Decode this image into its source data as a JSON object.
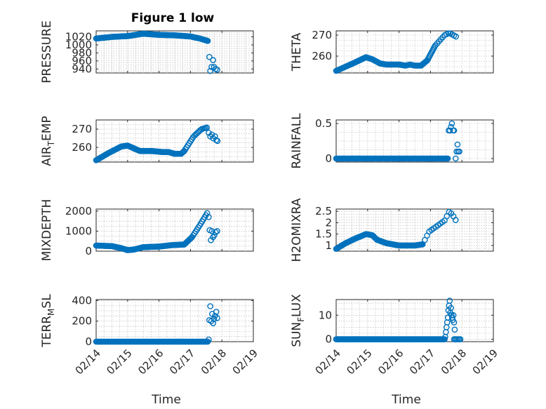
{
  "title": "Figure 1 low",
  "colors": {
    "series": "#0072BD",
    "axes": "#262626",
    "grid": "#b0b0b0"
  },
  "chart_data": [
    {
      "type": "scatter",
      "ylabel": "PRESSURE",
      "xlabel": "",
      "xlim": [
        0,
        5
      ],
      "ylim": [
        930,
        1035
      ],
      "yticks": [
        940,
        960,
        980,
        1000,
        1020
      ],
      "yticklabels": [
        "940",
        "960",
        "980",
        "1000",
        "1020"
      ],
      "grid": true,
      "series": [
        {
          "segments": [
            {
              "x0": 0.0,
              "x1": 3.55,
              "step": 0.025,
              "knots": [
                [
                  0.0,
                  1016
                ],
                [
                  0.5,
                  1020
                ],
                [
                  1.0,
                  1022
                ],
                [
                  1.5,
                  1028
                ],
                [
                  2.0,
                  1025
                ],
                [
                  2.5,
                  1024
                ],
                [
                  3.0,
                  1021
                ],
                [
                  3.3,
                  1016
                ],
                [
                  3.55,
                  1010
                ]
              ]
            }
          ],
          "points": [
            [
              3.6,
              970
            ],
            [
              3.63,
              935
            ],
            [
              3.67,
              945
            ],
            [
              3.72,
              962
            ],
            [
              3.75,
              945
            ],
            [
              3.8,
              940
            ],
            [
              3.85,
              938
            ]
          ]
        }
      ]
    },
    {
      "type": "scatter",
      "ylabel": "THETA",
      "xlabel": "",
      "xlim": [
        0,
        5
      ],
      "ylim": [
        252,
        272
      ],
      "yticks": [
        260,
        270
      ],
      "yticklabels": [
        "260",
        "270"
      ],
      "grid": true,
      "series": [
        {
          "segments": [
            {
              "x0": 0.0,
              "x1": 3.15,
              "step": 0.025,
              "knots": [
                [
                  0.0,
                  253
                ],
                [
                  0.3,
                  255
                ],
                [
                  0.6,
                  257
                ],
                [
                  0.95,
                  259.5
                ],
                [
                  1.15,
                  258.5
                ],
                [
                  1.4,
                  256.5
                ],
                [
                  1.6,
                  256
                ],
                [
                  2.0,
                  256
                ],
                [
                  2.2,
                  255.5
                ],
                [
                  2.35,
                  256
                ],
                [
                  2.5,
                  255.5
                ],
                [
                  2.7,
                  255.5
                ],
                [
                  2.9,
                  258
                ],
                [
                  3.15,
                  265
                ]
              ]
            },
            {
              "x0": 3.15,
              "x1": 3.85,
              "step": 0.06,
              "knots": [
                [
                  3.15,
                  265
                ],
                [
                  3.45,
                  270
                ],
                [
                  3.6,
                  271
                ],
                [
                  3.85,
                  269
                ]
              ]
            }
          ],
          "points": []
        }
      ]
    },
    {
      "type": "scatter",
      "ylabel": "AIR_TEMP",
      "xlabel": "",
      "xlim": [
        0,
        5
      ],
      "ylim": [
        252,
        275
      ],
      "yticks": [
        260,
        270
      ],
      "yticklabels": [
        "260",
        "270"
      ],
      "grid": true,
      "series": [
        {
          "segments": [
            {
              "x0": 0.0,
              "x1": 2.8,
              "step": 0.025,
              "knots": [
                [
                  0.0,
                  253
                ],
                [
                  0.4,
                  257
                ],
                [
                  0.8,
                  260.5
                ],
                [
                  1.0,
                  261
                ],
                [
                  1.2,
                  259.5
                ],
                [
                  1.4,
                  258
                ],
                [
                  1.8,
                  258
                ],
                [
                  2.1,
                  257.5
                ],
                [
                  2.3,
                  257.5
                ],
                [
                  2.5,
                  256.5
                ],
                [
                  2.7,
                  256.5
                ],
                [
                  2.8,
                  258
                ]
              ]
            },
            {
              "x0": 2.8,
              "x1": 3.55,
              "step": 0.04,
              "knots": [
                [
                  2.8,
                  258
                ],
                [
                  3.1,
                  266
                ],
                [
                  3.35,
                  270
                ],
                [
                  3.55,
                  271
                ]
              ]
            }
          ],
          "points": [
            [
              3.58,
              268
            ],
            [
              3.63,
              266
            ],
            [
              3.68,
              267
            ],
            [
              3.72,
              265
            ],
            [
              3.78,
              266
            ],
            [
              3.82,
              264
            ],
            [
              3.86,
              263.5
            ]
          ]
        }
      ]
    },
    {
      "type": "scatter",
      "ylabel": "RAINFALL",
      "xlabel": "",
      "xlim": [
        0,
        5
      ],
      "ylim": [
        -0.05,
        0.55
      ],
      "yticks": [
        0,
        0.5
      ],
      "yticklabels": [
        "0",
        "0.5"
      ],
      "grid": true,
      "series": [
        {
          "segments": [
            {
              "x0": 0.0,
              "x1": 3.55,
              "step": 0.025,
              "knots": [
                [
                  0.0,
                  0
                ],
                [
                  3.55,
                  0
                ]
              ]
            }
          ],
          "points": [
            [
              3.58,
              0.4
            ],
            [
              3.62,
              0.4
            ],
            [
              3.65,
              0.45
            ],
            [
              3.68,
              0.5
            ],
            [
              3.72,
              0.4
            ],
            [
              3.75,
              0.4
            ],
            [
              3.8,
              0.0
            ],
            [
              3.83,
              0.1
            ],
            [
              3.86,
              0.2
            ],
            [
              3.88,
              0.1
            ],
            [
              3.92,
              0.1
            ]
          ]
        }
      ]
    },
    {
      "type": "scatter",
      "ylabel": "MIXDEPTH",
      "xlabel": "",
      "xlim": [
        0,
        5
      ],
      "ylim": [
        0,
        2100
      ],
      "yticks": [
        0,
        1000,
        2000
      ],
      "yticklabels": [
        "0",
        "1000",
        "2000"
      ],
      "grid": true,
      "series": [
        {
          "segments": [
            {
              "x0": 0.0,
              "x1": 3.05,
              "step": 0.025,
              "knots": [
                [
                  0.0,
                  280
                ],
                [
                  0.5,
                  250
                ],
                [
                  0.8,
                  150
                ],
                [
                  1.0,
                  50
                ],
                [
                  1.2,
                  80
                ],
                [
                  1.5,
                  200
                ],
                [
                  2.0,
                  230
                ],
                [
                  2.4,
                  300
                ],
                [
                  2.8,
                  330
                ],
                [
                  3.05,
                  700
                ]
              ]
            },
            {
              "x0": 3.05,
              "x1": 3.55,
              "step": 0.04,
              "knots": [
                [
                  3.05,
                  700
                ],
                [
                  3.3,
                  1300
                ],
                [
                  3.55,
                  1950
                ]
              ]
            }
          ],
          "points": [
            [
              3.58,
              1700
            ],
            [
              3.61,
              1050
            ],
            [
              3.65,
              550
            ],
            [
              3.68,
              1000
            ],
            [
              3.72,
              700
            ],
            [
              3.76,
              800
            ],
            [
              3.8,
              950
            ],
            [
              3.85,
              1000
            ]
          ]
        }
      ]
    },
    {
      "type": "scatter",
      "ylabel": "H2OMIXRA",
      "xlabel": "",
      "xlim": [
        0,
        5
      ],
      "ylim": [
        0.75,
        2.6
      ],
      "yticks": [
        1,
        1.5,
        2,
        2.5
      ],
      "yticklabels": [
        "1",
        "1.5",
        "2",
        "2.5"
      ],
      "grid": true,
      "series": [
        {
          "segments": [
            {
              "x0": 0.0,
              "x1": 2.75,
              "step": 0.025,
              "knots": [
                [
                  0.0,
                  0.85
                ],
                [
                  0.3,
                  1.1
                ],
                [
                  0.6,
                  1.3
                ],
                [
                  0.95,
                  1.5
                ],
                [
                  1.15,
                  1.45
                ],
                [
                  1.3,
                  1.25
                ],
                [
                  1.6,
                  1.1
                ],
                [
                  2.0,
                  1.0
                ],
                [
                  2.3,
                  1.0
                ],
                [
                  2.5,
                  1.0
                ],
                [
                  2.75,
                  1.05
                ]
              ]
            },
            {
              "x0": 2.75,
              "x1": 3.85,
              "step": 0.07,
              "knots": [
                [
                  2.75,
                  1.05
                ],
                [
                  2.95,
                  1.6
                ],
                [
                  3.2,
                  1.85
                ],
                [
                  3.45,
                  2.1
                ],
                [
                  3.6,
                  2.5
                ],
                [
                  3.7,
                  2.35
                ],
                [
                  3.85,
                  2.0
                ]
              ]
            }
          ],
          "points": []
        }
      ]
    },
    {
      "type": "scatter",
      "ylabel": "TERR_MSL",
      "xlabel": "Time",
      "xlim": [
        0,
        5
      ],
      "ylim": [
        0,
        410
      ],
      "yticks": [
        0,
        200,
        400
      ],
      "yticklabels": [
        "0",
        "200",
        "400"
      ],
      "xticks": [
        0,
        1,
        2,
        3,
        4,
        5
      ],
      "xticklabels": [
        "02/14",
        "02/15",
        "02/16",
        "02/17",
        "02/18",
        "02/19"
      ],
      "grid": true,
      "series": [
        {
          "segments": [
            {
              "x0": 0.0,
              "x1": 3.55,
              "step": 0.025,
              "knots": [
                [
                  0.0,
                  0
                ],
                [
                  3.55,
                  0
                ]
              ]
            }
          ],
          "points": [
            [
              3.58,
              20
            ],
            [
              3.6,
              210
            ],
            [
              3.63,
              345
            ],
            [
              3.66,
              200
            ],
            [
              3.69,
              270
            ],
            [
              3.72,
              180
            ],
            [
              3.75,
              220
            ],
            [
              3.78,
              250
            ],
            [
              3.82,
              290
            ],
            [
              3.85,
              230
            ]
          ]
        }
      ]
    },
    {
      "type": "scatter",
      "ylabel": "SUN_FLUX",
      "xlabel": "Time",
      "xlim": [
        0,
        5
      ],
      "ylim": [
        -1,
        16.5
      ],
      "yticks": [
        0,
        10
      ],
      "yticklabels": [
        "0",
        "10"
      ],
      "xticks": [
        0,
        1,
        2,
        3,
        4,
        5
      ],
      "xticklabels": [
        "02/14",
        "02/15",
        "02/16",
        "02/17",
        "02/18",
        "02/19"
      ],
      "grid": true,
      "series": [
        {
          "segments": [
            {
              "x0": 0.0,
              "x1": 3.45,
              "step": 0.025,
              "knots": [
                [
                  0.0,
                  0
                ],
                [
                  3.45,
                  0
                ]
              ]
            },
            {
              "x0": 3.75,
              "x1": 3.95,
              "step": 0.04,
              "knots": [
                [
                  3.75,
                  0
                ],
                [
                  3.95,
                  0
                ]
              ]
            }
          ],
          "points": [
            [
              3.47,
              1
            ],
            [
              3.49,
              3
            ],
            [
              3.51,
              5
            ],
            [
              3.53,
              7
            ],
            [
              3.55,
              9
            ],
            [
              3.57,
              12
            ],
            [
              3.59,
              14
            ],
            [
              3.61,
              16
            ],
            [
              3.63,
              11
            ],
            [
              3.65,
              13
            ],
            [
              3.67,
              10
            ],
            [
              3.69,
              9
            ],
            [
              3.71,
              8
            ],
            [
              3.73,
              10
            ],
            [
              3.75,
              7
            ],
            [
              3.77,
              4
            ],
            [
              3.79,
              0
            ]
          ]
        }
      ]
    }
  ]
}
